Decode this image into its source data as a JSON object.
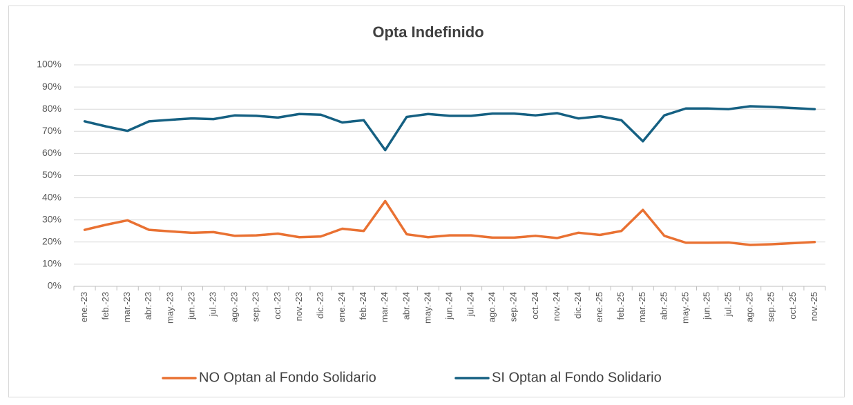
{
  "chart_data": {
    "type": "line",
    "title": "Opta Indefinido",
    "categories": [
      "ene.-23",
      "feb.-23",
      "mar.-23",
      "abr.-23",
      "may.-23",
      "jun.-23",
      "jul.-23",
      "ago.-23",
      "sep.-23",
      "oct.-23",
      "nov.-23",
      "dic.-23",
      "ene.-24",
      "feb.-24",
      "mar.-24",
      "abr.-24",
      "may.-24",
      "jun.-24",
      "jul.-24",
      "ago.-24",
      "sep.-24",
      "oct.-24",
      "nov.-24",
      "dic.-24",
      "ene.-25",
      "feb.-25",
      "mar.-25",
      "abr.-25",
      "may.-25",
      "jun.-25",
      "jul.-25",
      "ago.-25",
      "sep.-25",
      "oct.-25",
      "nov.-25"
    ],
    "series": [
      {
        "name": "NO Optan al Fondo Solidario",
        "color": "#E97132",
        "values": [
          25.5,
          27.8,
          29.8,
          25.5,
          24.8,
          24.2,
          24.5,
          22.8,
          23,
          23.8,
          22.2,
          22.5,
          26,
          25,
          38.5,
          23.5,
          22.2,
          23,
          23,
          22,
          22,
          22.8,
          21.8,
          24.2,
          23.2,
          25,
          34.5,
          22.8,
          19.7,
          19.7,
          19.8,
          18.7,
          19,
          19.5,
          20
        ]
      },
      {
        "name": "SI Optan al Fondo Solidario",
        "color": "#156082",
        "values": [
          74.5,
          72.2,
          70.2,
          74.5,
          75.2,
          75.8,
          75.5,
          77.2,
          77,
          76.2,
          77.8,
          77.5,
          74,
          75,
          61.5,
          76.5,
          77.8,
          77,
          77,
          78,
          78,
          77.2,
          78.2,
          75.8,
          76.8,
          75,
          65.5,
          77.2,
          80.3,
          80.3,
          80,
          81.3,
          81,
          80.5,
          80
        ]
      }
    ],
    "ylim": [
      0,
      100
    ],
    "yticks": [
      {
        "value": 0,
        "label": "0%"
      },
      {
        "value": 10,
        "label": "10%"
      },
      {
        "value": 20,
        "label": "20%"
      },
      {
        "value": 30,
        "label": "30%"
      },
      {
        "value": 40,
        "label": "40%"
      },
      {
        "value": 50,
        "label": "50%"
      },
      {
        "value": 60,
        "label": "60%"
      },
      {
        "value": 70,
        "label": "70%"
      },
      {
        "value": 80,
        "label": "80%"
      },
      {
        "value": 90,
        "label": "90%"
      },
      {
        "value": 100,
        "label": "100%"
      }
    ],
    "grid": true,
    "legend": "bottom"
  }
}
